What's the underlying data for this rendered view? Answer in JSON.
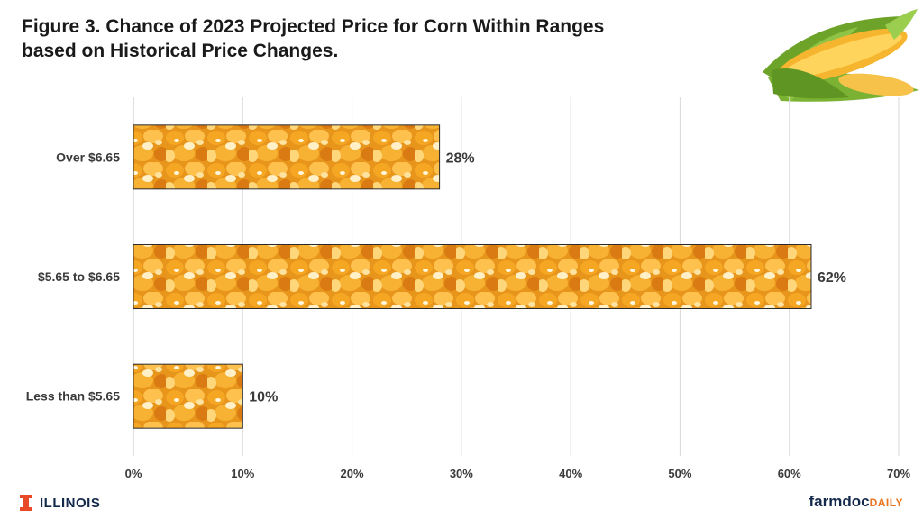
{
  "title_lines": [
    "Figure 3. Chance of 2023 Projected Price for Corn Within Ranges",
    "based on Historical Price Changes."
  ],
  "chart_data": {
    "type": "bar",
    "orientation": "horizontal",
    "categories": [
      "Over $6.65",
      "$5.65 to $6.65",
      "Less than $5.65"
    ],
    "values": [
      28,
      62,
      10
    ],
    "data_labels": [
      "28%",
      "62%",
      "10%"
    ],
    "xlim": [
      0,
      70
    ],
    "xticks": [
      0,
      10,
      20,
      30,
      40,
      50,
      60,
      70
    ],
    "xtick_labels": [
      "0%",
      "10%",
      "20%",
      "30%",
      "40%",
      "50%",
      "60%",
      "70%"
    ],
    "xlabel": "",
    "ylabel": "",
    "grid": "vertical",
    "bar_fill": "corn kernel photo texture"
  },
  "footer": {
    "left_logo_text": "ILLINOIS",
    "right_logo_main": "farmdoc",
    "right_logo_accent": "DAILY"
  },
  "colors": {
    "title": "#1a1a1a",
    "axis_text": "#3a3a3a",
    "grid": "#d9d9d9",
    "kernel_base": "#f0a020",
    "kernel_light": "#ffd36b",
    "kernel_dark": "#c26a10",
    "illinois_orange": "#e84a27",
    "illinois_navy": "#13294b",
    "farmdoc_orange": "#e8741e"
  }
}
